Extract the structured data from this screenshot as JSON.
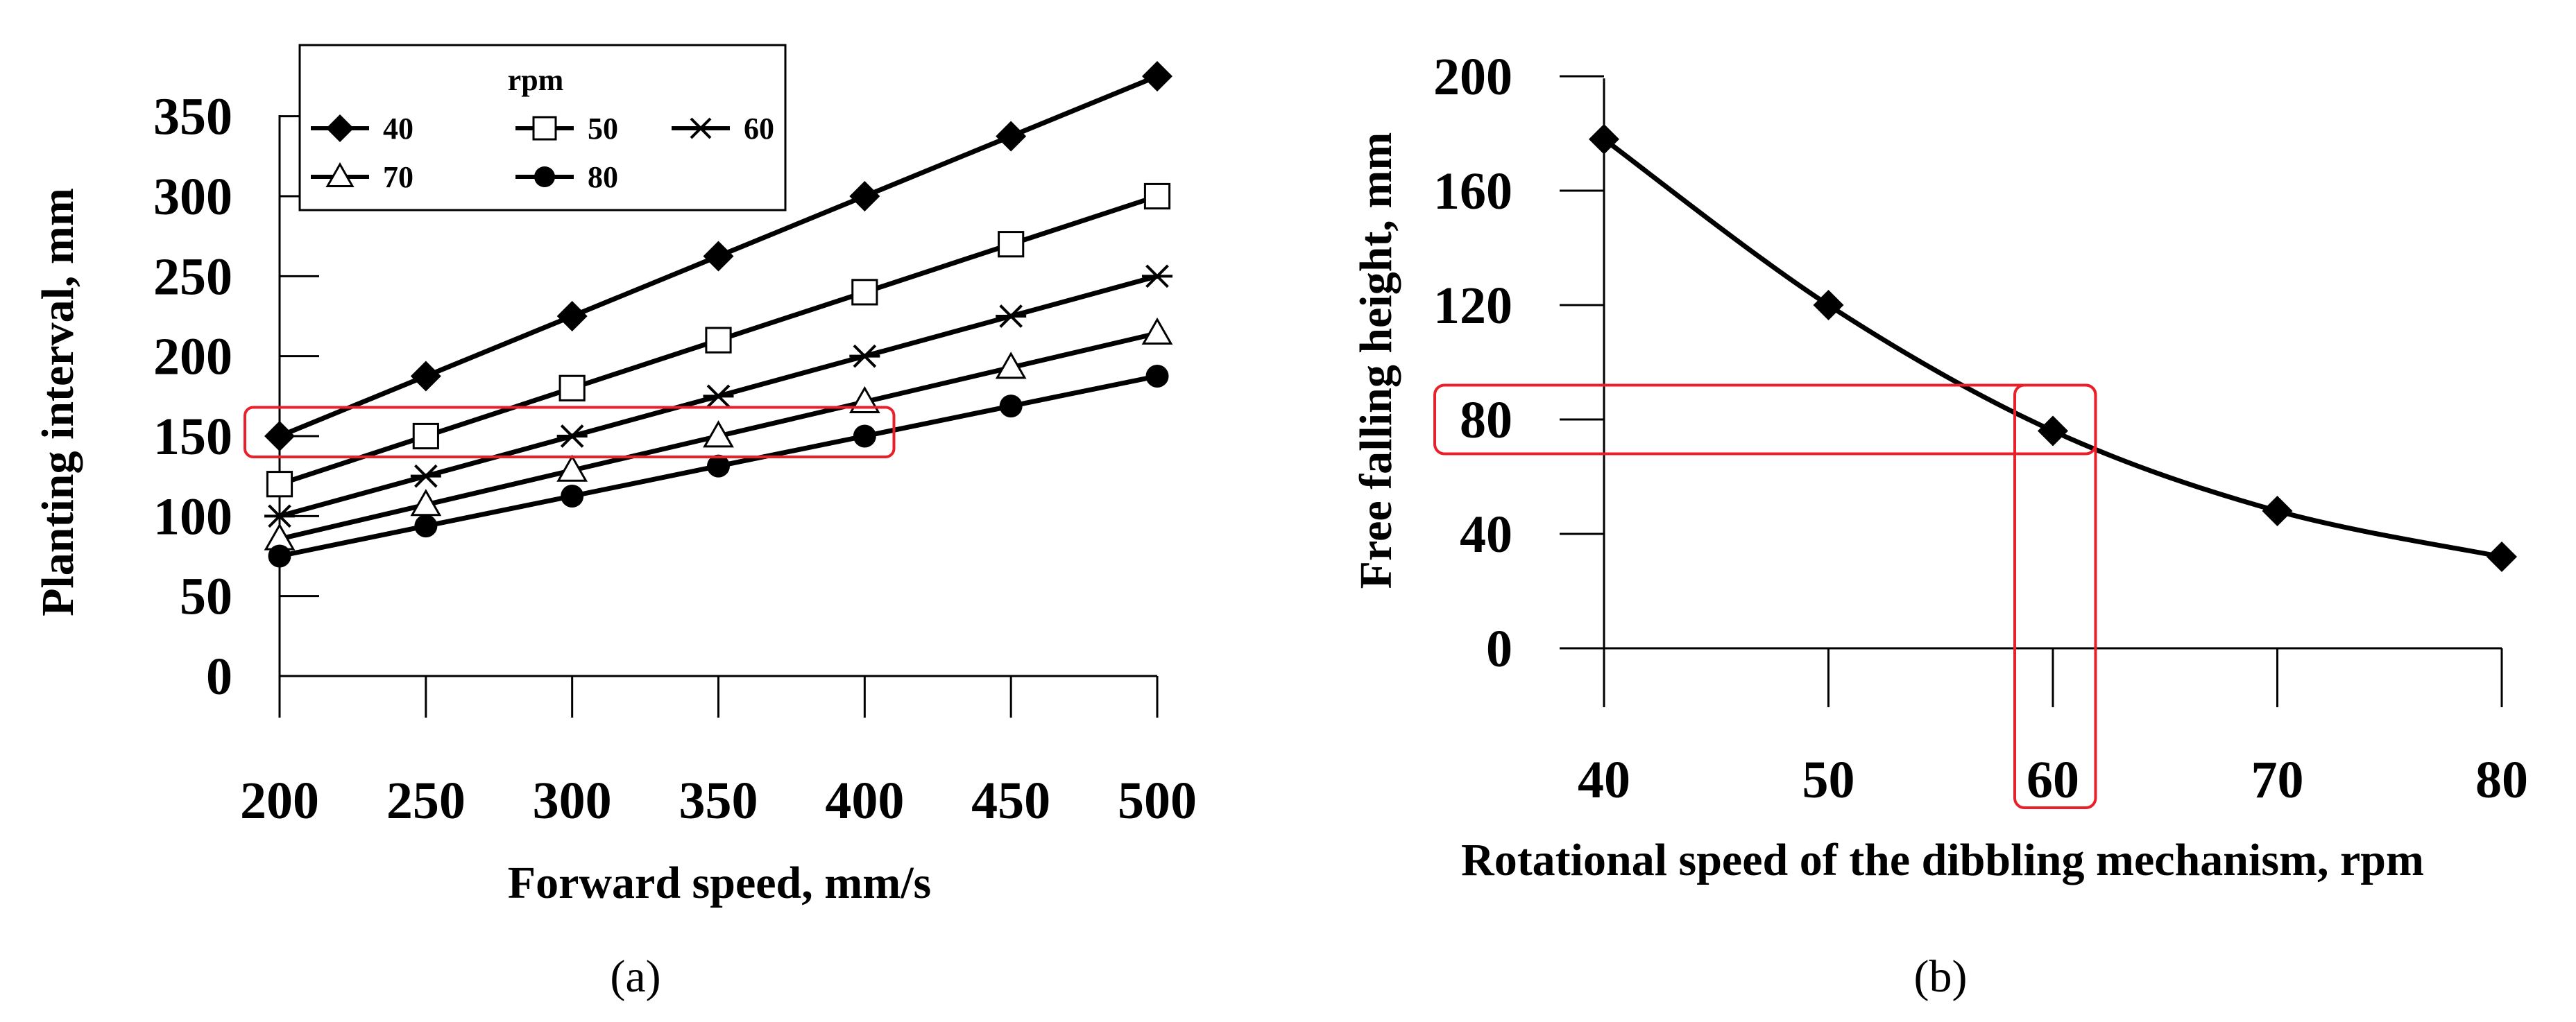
{
  "chart_data": [
    {
      "type": "line",
      "panel_label": "(a)",
      "xlabel": "Forward speed, mm/s",
      "ylabel": "Planting interval, mm",
      "x": [
        200,
        250,
        300,
        350,
        400,
        450,
        500
      ],
      "x_ticks": [
        "200",
        "250",
        "300",
        "350",
        "400",
        "450",
        "500"
      ],
      "y_ticks": [
        "0",
        "50",
        "100",
        "150",
        "200",
        "250",
        "300",
        "350"
      ],
      "xlim": [
        200,
        500
      ],
      "ylim": [
        0,
        375
      ],
      "grid": false,
      "legend": {
        "title": "rpm",
        "placement": "top-left"
      },
      "series": [
        {
          "name": "40",
          "marker": "diamond-filled",
          "values": [
            150,
            187.5,
            225,
            262.5,
            300,
            337.5,
            375
          ]
        },
        {
          "name": "50",
          "marker": "square-open",
          "values": [
            120,
            150,
            180,
            210,
            240,
            270,
            300
          ]
        },
        {
          "name": "60",
          "marker": "asterisk",
          "values": [
            100,
            125,
            150,
            175,
            200,
            225,
            250
          ]
        },
        {
          "name": "70",
          "marker": "triangle-open",
          "values": [
            85.7,
            107.1,
            128.6,
            150,
            171.4,
            192.9,
            214.3
          ]
        },
        {
          "name": "80",
          "marker": "circle-filled",
          "values": [
            75,
            93.8,
            112.5,
            131.3,
            150,
            168.8,
            187.5
          ]
        }
      ],
      "highlight": {
        "color": "#e8202a",
        "x_range": [
          200,
          410
        ],
        "y_range": [
          137,
          168
        ]
      }
    },
    {
      "type": "line",
      "panel_label": "(b)",
      "xlabel": "Rotational speed of the dibbling mechanism, rpm",
      "ylabel": "Free falling height, mm",
      "x": [
        40,
        50,
        60,
        70,
        80
      ],
      "x_ticks": [
        "40",
        "50",
        "60",
        "70",
        "80"
      ],
      "y_ticks": [
        "0",
        "40",
        "80",
        "120",
        "160",
        "200"
      ],
      "xlim": [
        40,
        80
      ],
      "ylim": [
        0,
        200
      ],
      "grid": false,
      "series": [
        {
          "marker": "diamond-filled",
          "values": [
            178,
            120,
            76,
            48,
            32
          ]
        }
      ],
      "highlight": {
        "color": "#e8202a",
        "horizontal_y_range": [
          68,
          92
        ],
        "vertical_x_range": [
          58.3,
          61.9
        ]
      }
    }
  ]
}
